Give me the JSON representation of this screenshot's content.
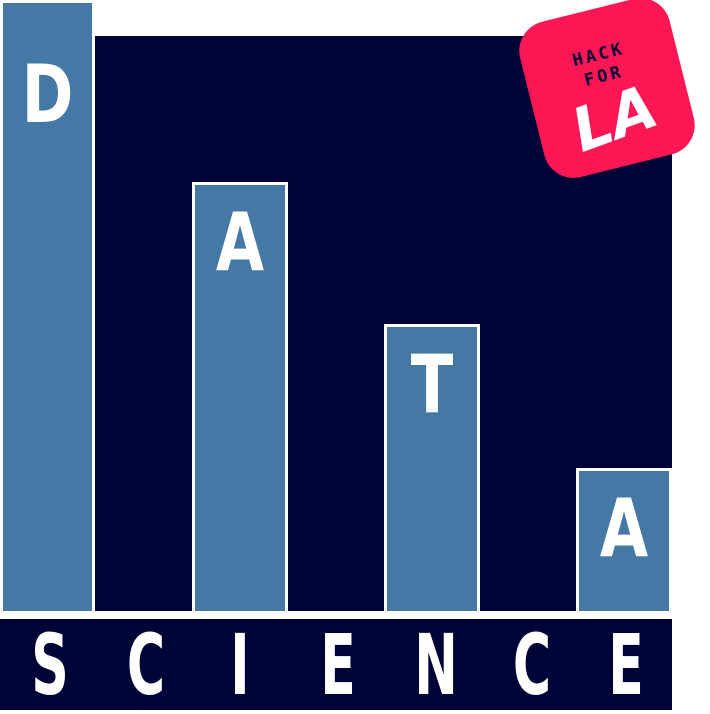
{
  "colors": {
    "navy": "#000335",
    "bar_blue": "#4479a6",
    "badge_red": "#ff1755",
    "white": "#ffffff"
  },
  "bars": [
    {
      "letter": "D",
      "level": 1.0
    },
    {
      "letter": "A",
      "level": 0.75
    },
    {
      "letter": "T",
      "level": 0.5
    },
    {
      "letter": "A",
      "level": 0.25
    }
  ],
  "science": [
    "S",
    "C",
    "I",
    "E",
    "N",
    "C",
    "E"
  ],
  "badge": {
    "line1": "HACK",
    "line2": "FOR",
    "line3": "LA"
  }
}
